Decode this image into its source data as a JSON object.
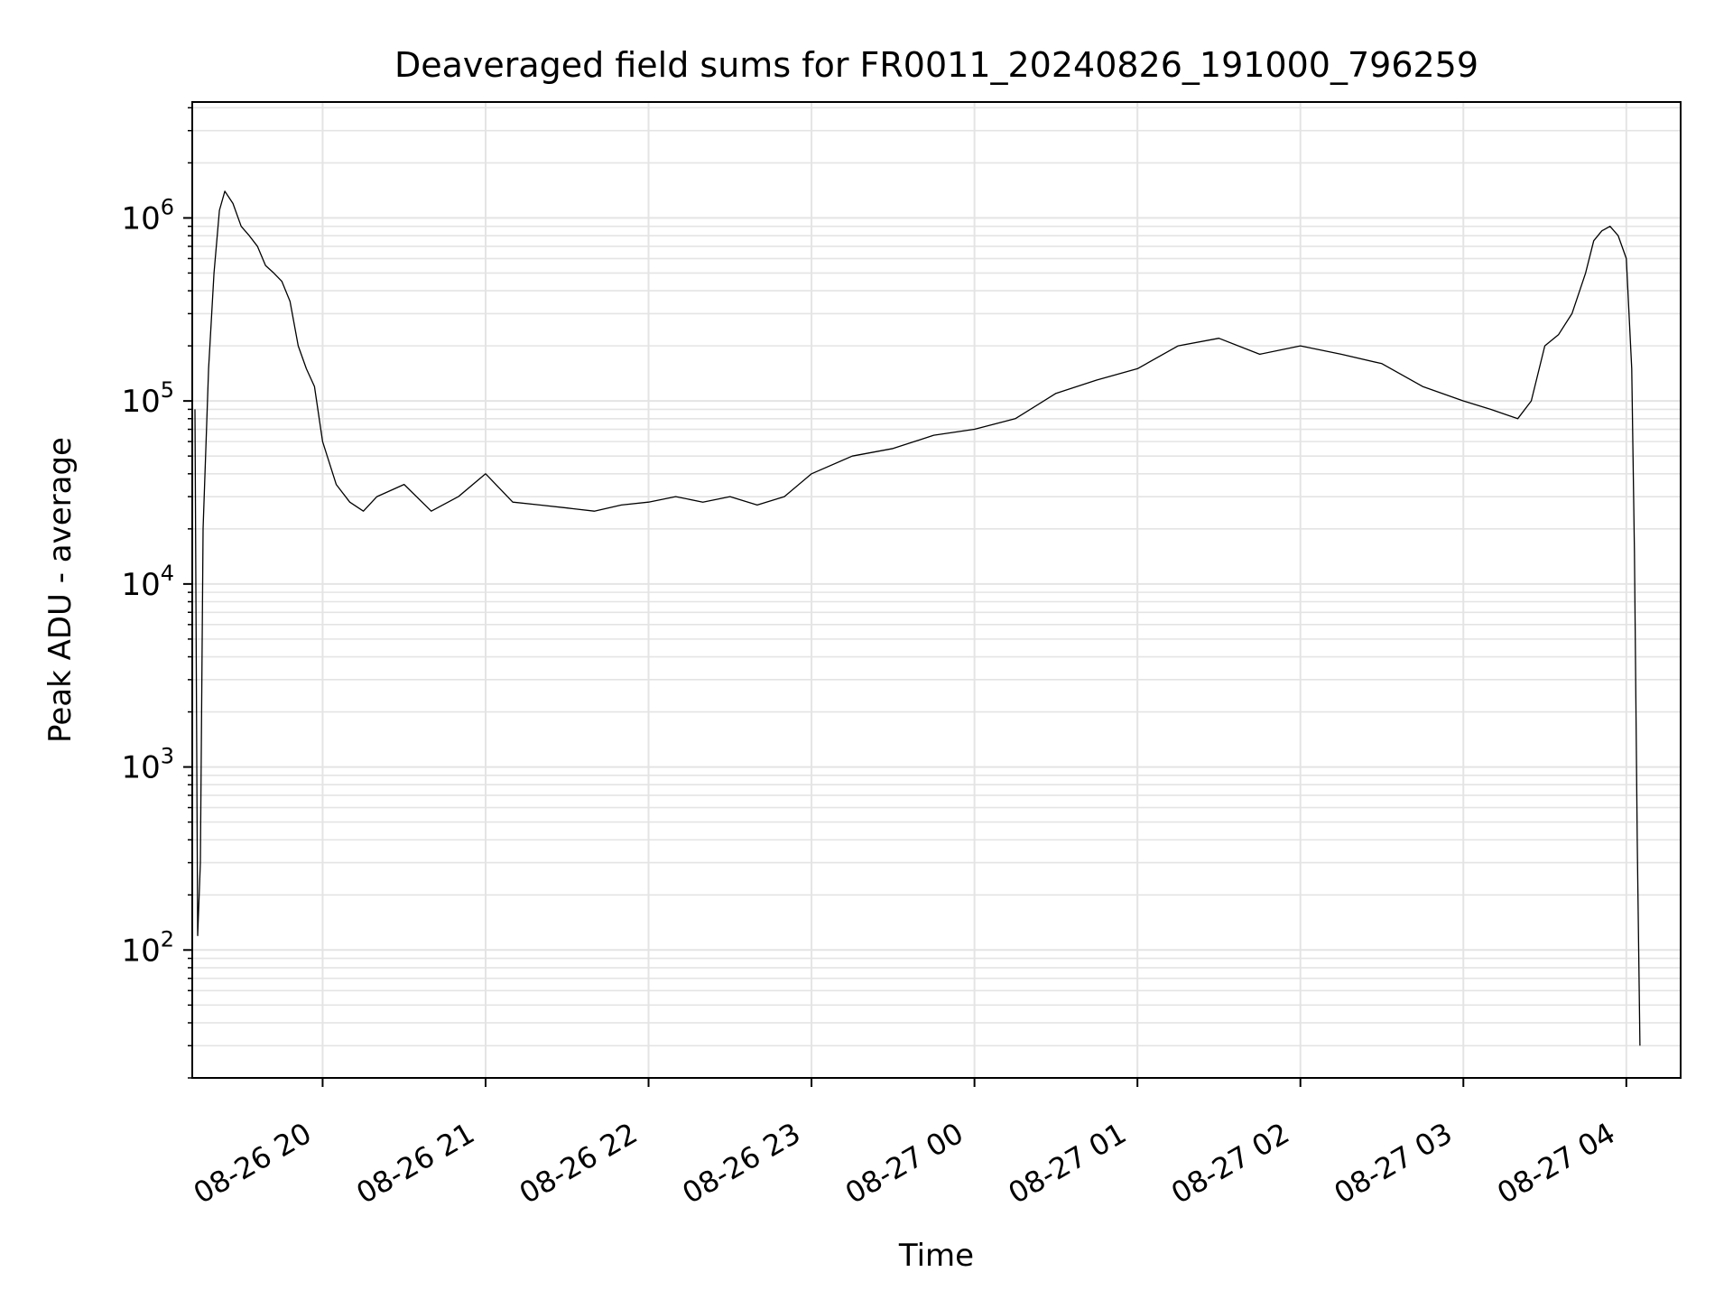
{
  "chart_data": {
    "type": "line",
    "title": "Deaveraged field sums for FR0011_20240826_191000_796259",
    "xlabel": "Time",
    "ylabel": "Peak ADU - average",
    "y_scale": "log",
    "ylim": [
      20,
      4300000.0
    ],
    "xlim": [
      "2024-08-26T19:12",
      "2024-08-27T04:20"
    ],
    "grid": true,
    "line_color": "#000000",
    "grid_color": "#e4e4e4",
    "x_ticks": [
      {
        "t": "2024-08-26T20:00",
        "label": "08-26 20"
      },
      {
        "t": "2024-08-26T21:00",
        "label": "08-26 21"
      },
      {
        "t": "2024-08-26T22:00",
        "label": "08-26 22"
      },
      {
        "t": "2024-08-26T23:00",
        "label": "08-26 23"
      },
      {
        "t": "2024-08-27T00:00",
        "label": "08-27 00"
      },
      {
        "t": "2024-08-27T01:00",
        "label": "08-27 01"
      },
      {
        "t": "2024-08-27T02:00",
        "label": "08-27 02"
      },
      {
        "t": "2024-08-27T03:00",
        "label": "08-27 03"
      },
      {
        "t": "2024-08-27T04:00",
        "label": "08-27 04"
      }
    ],
    "y_ticks": [
      {
        "value": 100,
        "base": "10",
        "exp": "2"
      },
      {
        "value": 1000,
        "base": "10",
        "exp": "3"
      },
      {
        "value": 10000,
        "base": "10",
        "exp": "4"
      },
      {
        "value": 100000,
        "base": "10",
        "exp": "5"
      },
      {
        "value": 1000000,
        "base": "10",
        "exp": "6"
      }
    ],
    "series": [
      {
        "x": [
          "2024-08-26T19:13",
          "2024-08-26T19:14",
          "2024-08-26T19:15",
          "2024-08-26T19:16",
          "2024-08-26T19:18",
          "2024-08-26T19:20",
          "2024-08-26T19:22",
          "2024-08-26T19:24",
          "2024-08-26T19:27",
          "2024-08-26T19:30",
          "2024-08-26T19:33",
          "2024-08-26T19:36",
          "2024-08-26T19:39",
          "2024-08-26T19:42",
          "2024-08-26T19:45",
          "2024-08-26T19:48",
          "2024-08-26T19:51",
          "2024-08-26T19:54",
          "2024-08-26T19:57",
          "2024-08-26T20:00",
          "2024-08-26T20:05",
          "2024-08-26T20:10",
          "2024-08-26T20:15",
          "2024-08-26T20:20",
          "2024-08-26T20:30",
          "2024-08-26T20:40",
          "2024-08-26T20:50",
          "2024-08-26T21:00",
          "2024-08-26T21:10",
          "2024-08-26T21:20",
          "2024-08-26T21:30",
          "2024-08-26T21:40",
          "2024-08-26T21:50",
          "2024-08-26T22:00",
          "2024-08-26T22:10",
          "2024-08-26T22:20",
          "2024-08-26T22:30",
          "2024-08-26T22:40",
          "2024-08-26T22:50",
          "2024-08-26T23:00",
          "2024-08-26T23:15",
          "2024-08-26T23:30",
          "2024-08-26T23:45",
          "2024-08-27T00:00",
          "2024-08-27T00:15",
          "2024-08-27T00:30",
          "2024-08-27T00:45",
          "2024-08-27T01:00",
          "2024-08-27T01:15",
          "2024-08-27T01:30",
          "2024-08-27T01:45",
          "2024-08-27T02:00",
          "2024-08-27T02:15",
          "2024-08-27T02:30",
          "2024-08-27T02:45",
          "2024-08-27T03:00",
          "2024-08-27T03:10",
          "2024-08-27T03:20",
          "2024-08-27T03:25",
          "2024-08-27T03:30",
          "2024-08-27T03:35",
          "2024-08-27T03:40",
          "2024-08-27T03:45",
          "2024-08-27T03:48",
          "2024-08-27T03:51",
          "2024-08-27T03:54",
          "2024-08-27T03:57",
          "2024-08-27T04:00",
          "2024-08-27T04:02",
          "2024-08-27T04:03",
          "2024-08-27T04:04",
          "2024-08-27T04:05"
        ],
        "y": [
          90000,
          120,
          300,
          20000,
          150000,
          500000,
          1100000,
          1400000,
          1200000,
          900000,
          800000,
          700000,
          550000,
          500000,
          450000,
          350000,
          200000,
          150000,
          120000,
          60000,
          35000,
          28000,
          25000,
          30000,
          35000,
          25000,
          30000,
          40000,
          28000,
          27000,
          26000,
          25000,
          27000,
          28000,
          30000,
          28000,
          30000,
          27000,
          30000,
          40000,
          50000,
          55000,
          65000,
          70000,
          80000,
          110000,
          130000,
          150000,
          200000,
          220000,
          180000,
          200000,
          180000,
          160000,
          120000,
          100000,
          90000,
          80000,
          100000,
          200000,
          230000,
          300000,
          500000,
          750000,
          850000,
          900000,
          800000,
          600000,
          150000,
          15000,
          400,
          30
        ]
      }
    ]
  }
}
